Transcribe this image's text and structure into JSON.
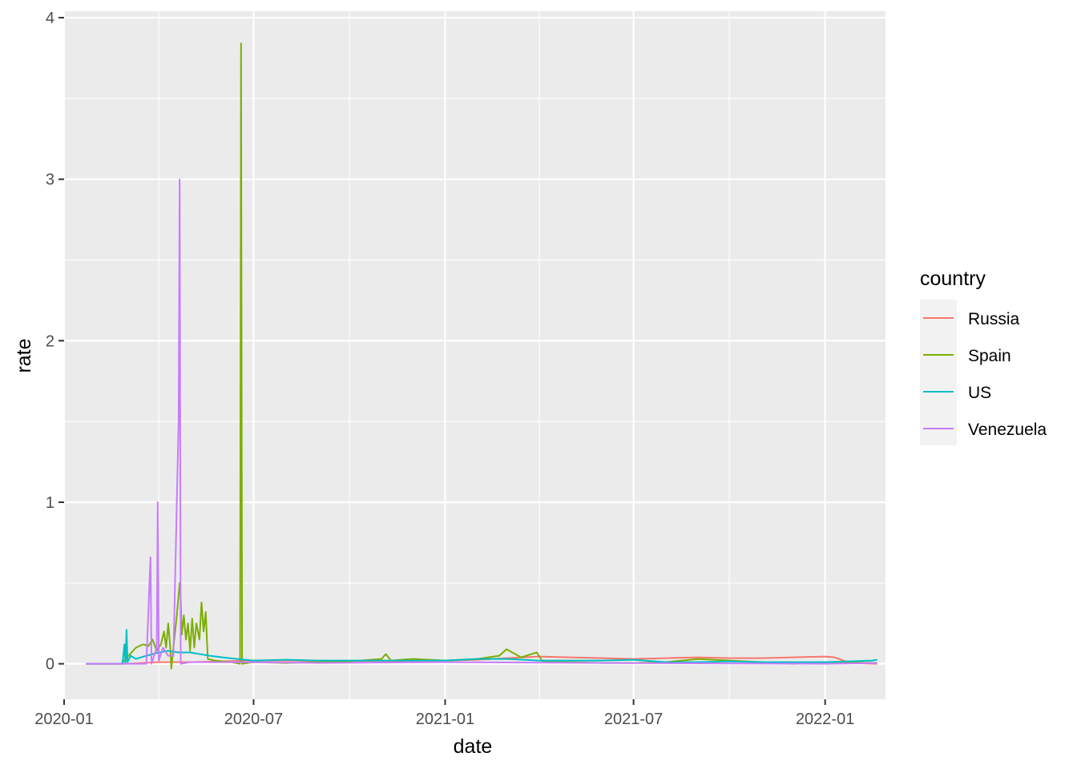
{
  "chart_data": {
    "type": "line",
    "title": "",
    "xlabel": "date",
    "ylabel": "rate",
    "x_range": [
      "2020-01-01",
      "2022-02-28"
    ],
    "ylim": [
      -0.22,
      4.04
    ],
    "x_ticks": [
      {
        "date": "2020-01-01",
        "label": "2020-01"
      },
      {
        "date": "2020-07-01",
        "label": "2020-07"
      },
      {
        "date": "2021-01-01",
        "label": "2021-01"
      },
      {
        "date": "2021-07-01",
        "label": "2021-07"
      },
      {
        "date": "2022-01-01",
        "label": "2022-01"
      }
    ],
    "y_ticks": [
      0,
      1,
      2,
      3,
      4
    ],
    "grid": true,
    "background": "#ebebeb",
    "legend": {
      "title": "country",
      "position": "right"
    },
    "series": [
      {
        "name": "Russia",
        "color": "#F8766D",
        "points": [
          [
            "2020-01-22",
            0
          ],
          [
            "2020-03-01",
            0
          ],
          [
            "2020-04-01",
            0.01
          ],
          [
            "2020-05-01",
            0.01
          ],
          [
            "2020-06-01",
            0.015
          ],
          [
            "2020-07-01",
            0.02
          ],
          [
            "2020-08-01",
            0.02
          ],
          [
            "2020-09-01",
            0.018
          ],
          [
            "2020-10-01",
            0.017
          ],
          [
            "2020-11-01",
            0.017
          ],
          [
            "2020-12-01",
            0.018
          ],
          [
            "2021-01-01",
            0.02
          ],
          [
            "2021-02-01",
            0.025
          ],
          [
            "2021-03-01",
            0.035
          ],
          [
            "2021-04-01",
            0.045
          ],
          [
            "2021-05-01",
            0.04
          ],
          [
            "2021-06-01",
            0.035
          ],
          [
            "2021-07-01",
            0.03
          ],
          [
            "2021-08-01",
            0.035
          ],
          [
            "2021-09-01",
            0.04
          ],
          [
            "2021-10-01",
            0.035
          ],
          [
            "2021-11-01",
            0.035
          ],
          [
            "2021-12-01",
            0.04
          ],
          [
            "2022-01-01",
            0.045
          ],
          [
            "2022-01-10",
            0.04
          ],
          [
            "2022-01-25",
            0.005
          ],
          [
            "2022-02-20",
            0
          ]
        ]
      },
      {
        "name": "Spain",
        "color": "#7CAE00",
        "points": [
          [
            "2020-01-22",
            0
          ],
          [
            "2020-02-25",
            0
          ],
          [
            "2020-03-03",
            0.05
          ],
          [
            "2020-03-10",
            0.1
          ],
          [
            "2020-03-17",
            0.12
          ],
          [
            "2020-03-22",
            0.11
          ],
          [
            "2020-03-26",
            0.15
          ],
          [
            "2020-03-30",
            0.08
          ],
          [
            "2020-04-03",
            0.12
          ],
          [
            "2020-04-06",
            0.2
          ],
          [
            "2020-04-08",
            0.1
          ],
          [
            "2020-04-10",
            0.25
          ],
          [
            "2020-04-12",
            0.1
          ],
          [
            "2020-04-13",
            -0.03
          ],
          [
            "2020-04-15",
            0.1
          ],
          [
            "2020-04-18",
            0.28
          ],
          [
            "2020-04-21",
            0.5
          ],
          [
            "2020-04-22",
            0.4
          ],
          [
            "2020-04-23",
            0.18
          ],
          [
            "2020-04-25",
            0.3
          ],
          [
            "2020-04-27",
            0.15
          ],
          [
            "2020-04-29",
            0.25
          ],
          [
            "2020-05-01",
            0.08
          ],
          [
            "2020-05-03",
            0.28
          ],
          [
            "2020-05-05",
            0.1
          ],
          [
            "2020-05-07",
            0.25
          ],
          [
            "2020-05-10",
            0.15
          ],
          [
            "2020-05-12",
            0.38
          ],
          [
            "2020-05-14",
            0.2
          ],
          [
            "2020-05-16",
            0.32
          ],
          [
            "2020-05-18",
            0.03
          ],
          [
            "2020-05-25",
            0.02
          ],
          [
            "2020-06-10",
            0.01
          ],
          [
            "2020-06-18",
            0.0
          ],
          [
            "2020-06-19",
            3.84
          ],
          [
            "2020-06-20",
            0.0
          ],
          [
            "2020-07-01",
            0.01
          ],
          [
            "2020-08-01",
            0.005
          ],
          [
            "2020-09-01",
            0.01
          ],
          [
            "2020-10-01",
            0.015
          ],
          [
            "2020-11-01",
            0.03
          ],
          [
            "2020-11-05",
            0.06
          ],
          [
            "2020-11-10",
            0.02
          ],
          [
            "2020-12-01",
            0.03
          ],
          [
            "2021-01-01",
            0.02
          ],
          [
            "2021-02-01",
            0.03
          ],
          [
            "2021-02-22",
            0.05
          ],
          [
            "2021-03-01",
            0.09
          ],
          [
            "2021-03-15",
            0.04
          ],
          [
            "2021-03-30",
            0.07
          ],
          [
            "2021-04-05",
            0.01
          ],
          [
            "2021-05-01",
            0.01
          ],
          [
            "2021-06-01",
            0.005
          ],
          [
            "2021-07-01",
            0.005
          ],
          [
            "2021-08-01",
            0.01
          ],
          [
            "2021-09-01",
            0.03
          ],
          [
            "2021-10-01",
            0.02
          ],
          [
            "2021-11-01",
            0.01
          ],
          [
            "2021-12-01",
            0.0
          ],
          [
            "2022-01-01",
            0.01
          ],
          [
            "2022-02-20",
            0.005
          ]
        ]
      },
      {
        "name": "US",
        "color": "#00BFC4",
        "points": [
          [
            "2020-01-22",
            0
          ],
          [
            "2020-02-26",
            0
          ],
          [
            "2020-02-28",
            0.12
          ],
          [
            "2020-02-29",
            0.0
          ],
          [
            "2020-03-01",
            0.21
          ],
          [
            "2020-03-02",
            0.01
          ],
          [
            "2020-03-05",
            0.05
          ],
          [
            "2020-03-10",
            0.03
          ],
          [
            "2020-03-20",
            0.05
          ],
          [
            "2020-04-01",
            0.07
          ],
          [
            "2020-04-10",
            0.08
          ],
          [
            "2020-04-20",
            0.07
          ],
          [
            "2020-05-01",
            0.07
          ],
          [
            "2020-05-10",
            0.06
          ],
          [
            "2020-05-20",
            0.05
          ],
          [
            "2020-06-01",
            0.04
          ],
          [
            "2020-06-15",
            0.03
          ],
          [
            "2020-07-01",
            0.02
          ],
          [
            "2020-08-01",
            0.025
          ],
          [
            "2020-09-01",
            0.02
          ],
          [
            "2020-10-01",
            0.02
          ],
          [
            "2020-11-01",
            0.02
          ],
          [
            "2020-12-01",
            0.02
          ],
          [
            "2021-01-01",
            0.02
          ],
          [
            "2021-02-01",
            0.03
          ],
          [
            "2021-03-01",
            0.03
          ],
          [
            "2021-04-01",
            0.02
          ],
          [
            "2021-05-01",
            0.02
          ],
          [
            "2021-06-01",
            0.02
          ],
          [
            "2021-07-01",
            0.025
          ],
          [
            "2021-08-01",
            0.01
          ],
          [
            "2021-09-01",
            0.01
          ],
          [
            "2021-10-01",
            0.015
          ],
          [
            "2021-11-01",
            0.01
          ],
          [
            "2021-12-01",
            0.01
          ],
          [
            "2022-01-01",
            0.01
          ],
          [
            "2022-02-15",
            0.02
          ],
          [
            "2022-02-20",
            0.025
          ]
        ]
      },
      {
        "name": "Venezuela",
        "color": "#C77CFF",
        "points": [
          [
            "2020-01-22",
            0
          ],
          [
            "2020-03-20",
            0
          ],
          [
            "2020-03-24",
            0.66
          ],
          [
            "2020-03-25",
            0.0
          ],
          [
            "2020-03-30",
            0.1
          ],
          [
            "2020-03-31",
            1.0
          ],
          [
            "2020-04-01",
            0.02
          ],
          [
            "2020-04-05",
            0.1
          ],
          [
            "2020-04-10",
            0.05
          ],
          [
            "2020-04-15",
            0.05
          ],
          [
            "2020-04-20",
            1.5
          ],
          [
            "2020-04-21",
            3.0
          ],
          [
            "2020-04-22",
            0.0
          ],
          [
            "2020-05-01",
            0.01
          ],
          [
            "2020-06-01",
            0.01
          ],
          [
            "2020-07-01",
            0.01
          ],
          [
            "2020-09-01",
            0.005
          ],
          [
            "2021-01-01",
            0.01
          ],
          [
            "2021-06-01",
            0.005
          ],
          [
            "2022-01-01",
            0.0
          ],
          [
            "2022-02-20",
            0.005
          ]
        ]
      }
    ]
  }
}
